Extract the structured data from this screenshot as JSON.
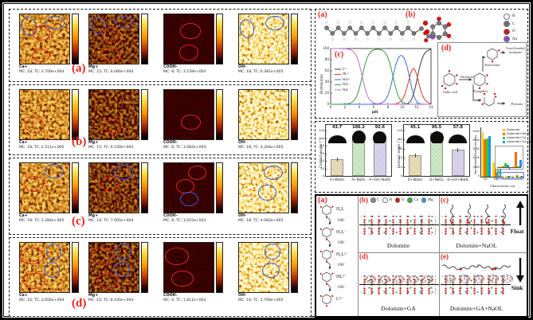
{
  "sims": {
    "ellipse_format": "[color,x_pct,y_pct,w_pct,h_pct,rotate_deg]",
    "rows": [
      {
        "label": "(a)",
        "panels": [
          {
            "ion": "Ca+",
            "info": "MC: 18; TC: 2.700e+004",
            "level": "medium",
            "seed": 3,
            "ellipses": [
              [
                "b",
                5,
                5,
                28,
                36,
                -18
              ],
              [
                "b",
                54,
                3,
                34,
                24,
                0
              ],
              [
                "r",
                27,
                24,
                32,
                26,
                0
              ],
              [
                "r",
                25,
                70,
                34,
                24,
                0
              ]
            ]
          },
          {
            "ion": "Mg+",
            "info": "MC: 15; TC: 6.080e+004",
            "level": "dim",
            "seed": 7,
            "ellipses": [
              [
                "b",
                5,
                7,
                28,
                30,
                -15
              ],
              [
                "b",
                54,
                3,
                34,
                22,
                0
              ],
              [
                "r",
                27,
                25,
                32,
                28,
                0
              ],
              [
                "r",
                25,
                67,
                34,
                26,
                0
              ]
            ]
          },
          {
            "ion": "COOH-",
            "info": "MC: 8; TC: 3.239e+003",
            "level": "dark",
            "seed": 13,
            "ellipses": [
              [
                "r",
                34,
                17,
                38,
                30,
                0
              ],
              [
                "r",
                32,
                62,
                36,
                28,
                0
              ]
            ]
          },
          {
            "ion": "OH-",
            "info": "MC: 18; TC: 6.381e+005",
            "level": "bright",
            "seed": 19,
            "ellipses": [
              [
                "b",
                3,
                9,
                26,
                36,
                -12
              ],
              [
                "b",
                55,
                3,
                36,
                26,
                0
              ]
            ]
          }
        ]
      },
      {
        "label": "(b)",
        "panels": [
          {
            "ion": "Ca+",
            "info": "MC: 18; TC: 2.511e+005",
            "level": "medium",
            "seed": 23,
            "ellipses": [
              [
                "r",
                12,
                56,
                34,
                28,
                0
              ]
            ]
          },
          {
            "ion": "Mg+",
            "info": "MC: 15; TC: 6.150e+004",
            "level": "dim",
            "seed": 29,
            "ellipses": [
              [
                "r",
                30,
                58,
                34,
                26,
                0
              ]
            ]
          },
          {
            "ion": "COOH-",
            "info": "MC: 8; TC: 3.084e+003",
            "level": "dark",
            "seed": 31,
            "ellipses": [
              [
                "r",
                36,
                50,
                36,
                28,
                0
              ]
            ]
          },
          {
            "ion": "OH-",
            "info": "MC: 18; TC: 4.264e+005",
            "level": "bright",
            "seed": 37,
            "ellipses": []
          }
        ]
      },
      {
        "label": "(c)",
        "panels": [
          {
            "ion": "Ca+",
            "info": "MC: 18; TC: 2.284e+005",
            "level": "medium",
            "seed": 41,
            "ellipses": [
              [
                "b",
                51,
                2,
                36,
                26,
                0
              ],
              [
                "r",
                12,
                25,
                34,
                30,
                0
              ]
            ]
          },
          {
            "ion": "Mg+",
            "info": "MC: 14; TC: 7.005e+004",
            "level": "dim",
            "seed": 43,
            "ellipses": [
              [
                "b",
                51,
                4,
                36,
                26,
                0
              ],
              [
                "r",
                26,
                27,
                34,
                28,
                0
              ]
            ]
          },
          {
            "ion": "COOH-",
            "info": "MC: 8; TC: 3.015e+003",
            "level": "dark",
            "seed": 47,
            "ellipses": [
              [
                "r",
                50,
                5,
                34,
                26,
                0
              ],
              [
                "r",
                26,
                32,
                34,
                26,
                0
              ],
              [
                "b",
                34,
                58,
                34,
                26,
                0
              ]
            ]
          },
          {
            "ion": "OH-",
            "info": "MC: 18; TC: 4.083e+005",
            "level": "bright",
            "seed": 53,
            "ellipses": [
              [
                "b",
                51,
                5,
                36,
                26,
                0
              ],
              [
                "b",
                40,
                44,
                34,
                28,
                0
              ]
            ]
          }
        ]
      },
      {
        "label": "(d)",
        "panels": [
          {
            "ion": "Ca+",
            "info": "MC: 16; TC: 3.856e+004",
            "level": "medium",
            "seed": 59,
            "ellipses": [
              [
                "r",
                2,
                10,
                44,
                30,
                0
              ],
              [
                "b",
                55,
                2,
                28,
                30,
                0
              ],
              [
                "b",
                51,
                38,
                28,
                30,
                0
              ],
              [
                "r",
                8,
                62,
                42,
                28,
                0
              ]
            ]
          },
          {
            "ion": "Mg+",
            "info": "MC: 15; TC: 8.435e+004",
            "level": "dim",
            "seed": 61,
            "ellipses": [
              [
                "r",
                3,
                10,
                44,
                30,
                0
              ],
              [
                "b",
                55,
                2,
                28,
                28,
                0
              ],
              [
                "b",
                51,
                38,
                30,
                28,
                0
              ],
              [
                "r",
                18,
                62,
                40,
                28,
                0
              ]
            ]
          },
          {
            "ion": "COOH-",
            "info": "MC: 4; TC: 1.811e+003",
            "level": "dark",
            "seed": 67,
            "ellipses": [
              [
                "r",
                3,
                10,
                46,
                32,
                0
              ],
              [
                "r",
                16,
                56,
                42,
                30,
                0
              ]
            ]
          },
          {
            "ion": "OH-",
            "info": "MC: 16; TC: 2.769e+005",
            "level": "bright",
            "seed": 71,
            "ellipses": [
              [
                "b",
                53,
                2,
                30,
                28,
                0
              ],
              [
                "b",
                49,
                40,
                32,
                28,
                0
              ]
            ]
          }
        ]
      }
    ]
  },
  "top_right": {
    "label_a": "(a)",
    "label_b": "(b)",
    "atom_legend": [
      {
        "name": "H",
        "color": "#f4f4f4"
      },
      {
        "name": "C",
        "color": "#6f6f6f"
      },
      {
        "name": "O",
        "color": "#d41414"
      },
      {
        "name": "Na",
        "color": "#9147cc"
      }
    ],
    "scheme": {
      "label": "(d)",
      "enzyme": "Decarboxylase",
      "nodes": {
        "start": "Gallic acid",
        "mid": "Pyrogallol",
        "up": "Resorcinol",
        "up_product": "5-oxo-6-methyl hexanoate",
        "down_product": "Pyruvate"
      }
    }
  },
  "chart_data": [
    {
      "id": "gallic-acid-speciation",
      "type": "line",
      "title": "(c)",
      "xlabel": "pH",
      "ylabel": "Distribution",
      "xlim": [
        0,
        14
      ],
      "ylim": [
        0,
        100
      ],
      "xticks": [
        0,
        2,
        4,
        6,
        8,
        10,
        12,
        14
      ],
      "yticks": [
        0,
        20,
        40,
        60,
        80,
        100
      ],
      "pkas": [
        4.4,
        8.7,
        11.0,
        12.1
      ],
      "grid": false,
      "legend_position": "center-left",
      "series": [
        {
          "name": "L⁴⁻",
          "color": "#3c3c3c",
          "term_index": 4
        },
        {
          "name": "HL³⁻",
          "color": "#e03127",
          "term_index": 3
        },
        {
          "name": "H₂L²⁻",
          "color": "#3f6ae0",
          "term_index": 2
        },
        {
          "name": "H₃L⁻",
          "color": "#2f9e44",
          "term_index": 1
        },
        {
          "name": "H₄L",
          "color": "#b66fd8",
          "term_index": 0
        }
      ]
    },
    {
      "id": "apatite-contact-angle",
      "type": "bar",
      "title": "A-Apatite",
      "ylabel": "Contact angle (°)",
      "categories": [
        "A+Water",
        "A+NaOL",
        "A+GA+NaOL"
      ],
      "values": [
        43.7,
        106.2,
        92.6
      ],
      "bar_colors": [
        "#eadcb8",
        "#cde9c6",
        "#d9d4ec"
      ],
      "ylim": [
        0,
        120
      ],
      "yticks": [
        0,
        20,
        40,
        60,
        80,
        100,
        120
      ]
    },
    {
      "id": "dolomite-contact-angle",
      "type": "bar",
      "title": "D-Dolomite",
      "ylabel": "Contact angle (°)",
      "categories": [
        "D+Water",
        "D+NaOL",
        "D+GA+NaOL"
      ],
      "values": [
        45.1,
        95.5,
        57.8
      ],
      "bar_colors": [
        "#eadcb8",
        "#cde9c6",
        "#d9d4ec"
      ],
      "ylim": [
        0,
        100
      ],
      "yticks": [
        0,
        20,
        40,
        60,
        80,
        100
      ]
    },
    {
      "id": "tof-sims-peak-intensity",
      "type": "bar",
      "xlabel": "Characteristic ion",
      "ylabel": "Normalized Peak Intensity",
      "categories": [
        "Ca⁺",
        "Mg⁺",
        "C₇H₅O₅⁻",
        "C₁₇H₃₃O₂⁻"
      ],
      "ylim": [
        0,
        5500
      ],
      "yticks": [
        0,
        1000,
        2000,
        3000,
        4000,
        5000
      ],
      "legend_position": "top-right",
      "series": [
        {
          "name": "Dolomite",
          "color": "#ffd400",
          "values": [
            5000,
            1600,
            8,
            10
          ]
        },
        {
          "name": "Dolomite+NaOL",
          "color": "#ff6a00",
          "values": [
            4150,
            1150,
            6,
            215
          ]
        },
        {
          "name": "Dolomite+GA",
          "color": "#2ecc2e",
          "values": [
            4300,
            1350,
            55,
            8
          ]
        },
        {
          "name": "Dolomite+GA+NaOL",
          "color": "#1f8fff",
          "values": [
            4480,
            1420,
            38,
            105
          ]
        }
      ],
      "inset": {
        "category_indices": [
          2,
          3
        ],
        "ylim": [
          0,
          250
        ]
      }
    }
  ],
  "bottom": {
    "label_a": "(a)",
    "ladder": {
      "species": [
        "H₄L",
        "H₃L⁻",
        "H₂L²⁻",
        "HL³⁻",
        "L⁴⁻"
      ],
      "step_label": "OH⁻"
    },
    "atom_legend": [
      {
        "name": "C",
        "color": "#8a8a8a"
      },
      {
        "name": "H",
        "color": "#ffffff"
      },
      {
        "name": "O",
        "color": "#d41414"
      },
      {
        "name": "Ca",
        "color": "#2db52d"
      },
      {
        "name": "Mg",
        "color": "#2f9fd6"
      }
    ],
    "panels": [
      {
        "label": "(b)",
        "caption": "Dolomite",
        "deco": "plain"
      },
      {
        "label": "(c)",
        "caption": "Dolomite+NaOL",
        "deco": "chains-up",
        "side": {
          "arrow": "up",
          "label": "Float"
        }
      },
      {
        "label": "(d)",
        "caption": "Dolomite+GA",
        "deco": "blobs"
      },
      {
        "label": "(e)",
        "caption": "Dolomite+GA+NaOL",
        "deco": "blobs-chains",
        "side": {
          "arrow": "down",
          "label": "Sink"
        }
      }
    ]
  }
}
